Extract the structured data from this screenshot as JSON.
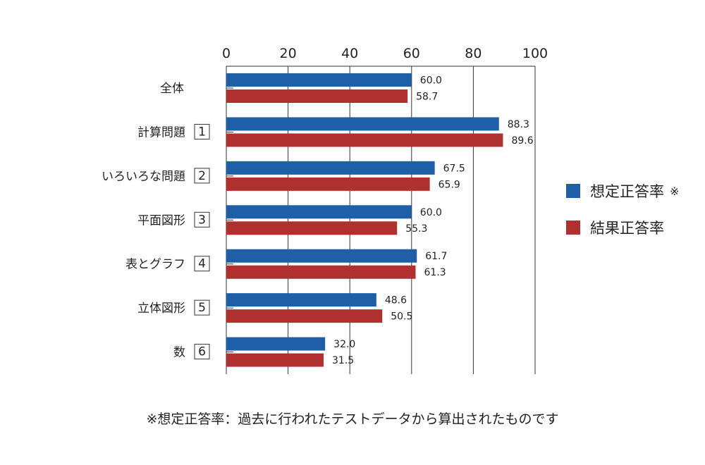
{
  "chart_data": {
    "type": "bar",
    "orientation": "horizontal",
    "xlim": [
      0,
      100
    ],
    "xticks": [
      0,
      20,
      40,
      60,
      80,
      100
    ],
    "grid": true,
    "legend_position": "right",
    "categories": [
      {
        "label": "全体",
        "number": ""
      },
      {
        "label": "計算問題",
        "number": "1"
      },
      {
        "label": "いろいろな問題",
        "number": "2"
      },
      {
        "label": "平面図形",
        "number": "3"
      },
      {
        "label": "表とグラフ",
        "number": "4"
      },
      {
        "label": "立体図形",
        "number": "5"
      },
      {
        "label": "数",
        "number": "6"
      }
    ],
    "series": [
      {
        "name": "想定正答率",
        "mark": "※",
        "color": "#1f5fa8",
        "values": [
          60.0,
          88.3,
          67.5,
          60.0,
          61.7,
          48.6,
          32.0
        ],
        "labels": [
          "60.0",
          "88.3",
          "67.5",
          "60.0",
          "61.7",
          "48.6",
          "32.0"
        ]
      },
      {
        "name": "結果正答率",
        "mark": "",
        "color": "#b03030",
        "values": [
          58.7,
          89.6,
          65.9,
          55.3,
          61.3,
          50.5,
          31.5
        ],
        "labels": [
          "58.7",
          "89.6",
          "65.9",
          "55.3",
          "61.3",
          "50.5",
          "31.5"
        ]
      }
    ]
  },
  "footnote": "※想定正答率：過去に行われたテストデータから算出されたものです"
}
